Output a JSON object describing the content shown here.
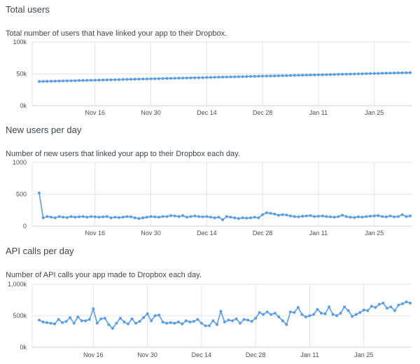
{
  "sections": [
    {
      "title": "Total users",
      "description": "Total number of users that have linked your app to their Dropbox."
    },
    {
      "title": "New users per day",
      "description": "Number of new users that linked your app to their Dropbox each day."
    },
    {
      "title": "API calls per day",
      "description": "Number of API calls your app made to Dropbox each day."
    }
  ],
  "colors": {
    "line": "#5b9ee6",
    "grid": "#e3e3e3",
    "axis": "#cfcfcf"
  },
  "chart_data": [
    {
      "type": "line",
      "title": "Total users",
      "x_start": "Nov 2",
      "x_tick_labels": [
        "Nov 16",
        "Nov 30",
        "Dec 14",
        "Dec 28",
        "Jan 11",
        "Jan 25"
      ],
      "x_tick_days": [
        14,
        28,
        42,
        56,
        70,
        84
      ],
      "y_ticks": [
        0,
        50000,
        100000
      ],
      "y_tick_labels": [
        "0k",
        "50k",
        "100k"
      ],
      "ylim": [
        0,
        100000
      ],
      "grid": true,
      "series": [
        {
          "values": [
            38000,
            38150,
            38300,
            38450,
            38600,
            38750,
            38900,
            39050,
            39200,
            39350,
            39500,
            39650,
            39800,
            39950,
            40100,
            40250,
            40400,
            40550,
            40700,
            40850,
            41000,
            41150,
            41300,
            41450,
            41600,
            41750,
            41900,
            42050,
            42200,
            42350,
            42500,
            42650,
            42800,
            42950,
            43100,
            43250,
            43400,
            43550,
            43700,
            43850,
            44000,
            44150,
            44300,
            44450,
            44600,
            44750,
            44900,
            45050,
            45200,
            45350,
            45500,
            45650,
            45800,
            45950,
            46100,
            46250,
            46400,
            46550,
            46700,
            46850,
            47000,
            47150,
            47300,
            47450,
            47600,
            47750,
            47900,
            48050,
            48200,
            48350,
            48500,
            48650,
            48800,
            48950,
            49100,
            49250,
            49400,
            49550,
            49700,
            49850,
            50000,
            50150,
            50300,
            50450,
            50600,
            50750,
            50900,
            51050,
            51200,
            51350,
            51500,
            51650,
            51800,
            51950
          ]
        }
      ]
    },
    {
      "type": "line",
      "title": "New users per day",
      "x_start": "Nov 2",
      "x_tick_labels": [
        "Nov 16",
        "Nov 30",
        "Dec 14",
        "Dec 28",
        "Jan 11",
        "Jan 25"
      ],
      "x_tick_days": [
        14,
        28,
        42,
        56,
        70,
        84
      ],
      "y_ticks": [
        0,
        500,
        1000
      ],
      "y_tick_labels": [
        "0",
        "500",
        "1000"
      ],
      "ylim": [
        0,
        1000
      ],
      "grid": true,
      "series": [
        {
          "values": [
            520,
            130,
            150,
            140,
            130,
            150,
            140,
            135,
            150,
            140,
            145,
            150,
            140,
            150,
            145,
            140,
            145,
            150,
            130,
            140,
            135,
            140,
            150,
            145,
            130,
            120,
            130,
            140,
            150,
            145,
            140,
            150,
            150,
            165,
            160,
            150,
            165,
            140,
            150,
            160,
            150,
            145,
            150,
            140,
            130,
            140,
            100,
            150,
            140,
            130,
            120,
            130,
            125,
            130,
            140,
            130,
            180,
            210,
            200,
            190,
            170,
            180,
            175,
            160,
            150,
            145,
            155,
            160,
            165,
            150,
            155,
            160,
            150,
            145,
            140,
            150,
            170,
            150,
            140,
            135,
            145,
            140,
            150,
            155,
            160,
            165,
            150,
            145,
            160,
            145,
            150,
            180,
            150,
            160
          ]
        }
      ]
    },
    {
      "type": "line",
      "title": "API calls per day",
      "x_start": "Nov 2",
      "x_tick_labels": [
        "Nov 16",
        "Nov 30",
        "Dec 14",
        "Dec 28",
        "Jan 11",
        "Jan 25"
      ],
      "x_tick_days": [
        14,
        28,
        42,
        56,
        70,
        84
      ],
      "y_ticks": [
        0,
        500000,
        1000000
      ],
      "y_tick_labels": [
        "0k",
        "500k",
        "1,000k"
      ],
      "ylim": [
        0,
        1000000
      ],
      "grid": true,
      "series": [
        {
          "values": [
            430000,
            400000,
            390000,
            380000,
            370000,
            440000,
            390000,
            410000,
            470000,
            380000,
            480000,
            420000,
            420000,
            440000,
            610000,
            380000,
            450000,
            460000,
            360000,
            300000,
            380000,
            460000,
            400000,
            370000,
            450000,
            380000,
            410000,
            470000,
            530000,
            420000,
            500000,
            510000,
            400000,
            380000,
            390000,
            380000,
            400000,
            370000,
            420000,
            400000,
            410000,
            440000,
            380000,
            340000,
            340000,
            420000,
            360000,
            570000,
            400000,
            430000,
            420000,
            450000,
            380000,
            440000,
            430000,
            410000,
            460000,
            550000,
            520000,
            560000,
            520000,
            540000,
            480000,
            420000,
            360000,
            560000,
            550000,
            630000,
            520000,
            480000,
            500000,
            520000,
            600000,
            540000,
            530000,
            640000,
            520000,
            500000,
            540000,
            640000,
            580000,
            490000,
            520000,
            550000,
            590000,
            580000,
            650000,
            630000,
            680000,
            700000,
            620000,
            640000,
            580000,
            670000,
            690000,
            720000,
            700000
          ]
        }
      ]
    }
  ]
}
